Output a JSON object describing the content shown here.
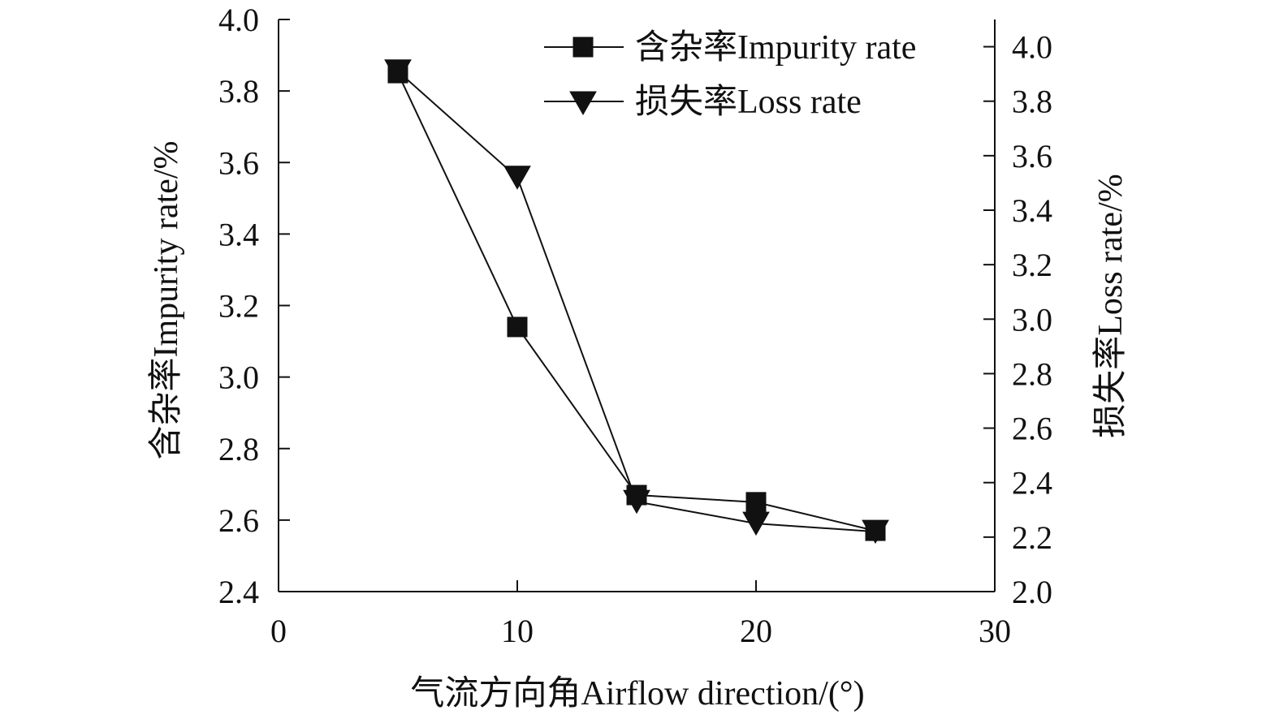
{
  "chart_data": {
    "type": "line",
    "title": "",
    "xlabel": "气流方向角Airflow direction/(°)",
    "ylabel": "含杂率Impurity rate/%",
    "y2label": "损失率Loss rate/%",
    "xlim": [
      0,
      30
    ],
    "ylim": [
      2.4,
      4.0
    ],
    "y2lim": [
      2.0,
      4.1
    ],
    "x_ticks": [
      "0",
      "10",
      "20",
      "30"
    ],
    "y_ticks": [
      "2.4",
      "2.6",
      "2.8",
      "3.0",
      "3.2",
      "3.4",
      "3.6",
      "3.8",
      "4.0"
    ],
    "y2_ticks": [
      "2.0",
      "2.2",
      "2.4",
      "2.6",
      "2.8",
      "3.0",
      "3.2",
      "3.4",
      "3.6",
      "3.8",
      "4.0"
    ],
    "grid": false,
    "legend_position": "top-right",
    "x": [
      5,
      10,
      15,
      20,
      25
    ],
    "series": [
      {
        "name": "含杂率Impurity rate",
        "axis": "left",
        "marker": "square",
        "values": [
          3.85,
          3.14,
          2.67,
          2.65,
          2.57
        ]
      },
      {
        "name": "损失率Loss rate",
        "axis": "right",
        "marker": "triangle-down",
        "values": [
          3.91,
          3.52,
          2.33,
          2.25,
          2.22
        ]
      }
    ]
  }
}
